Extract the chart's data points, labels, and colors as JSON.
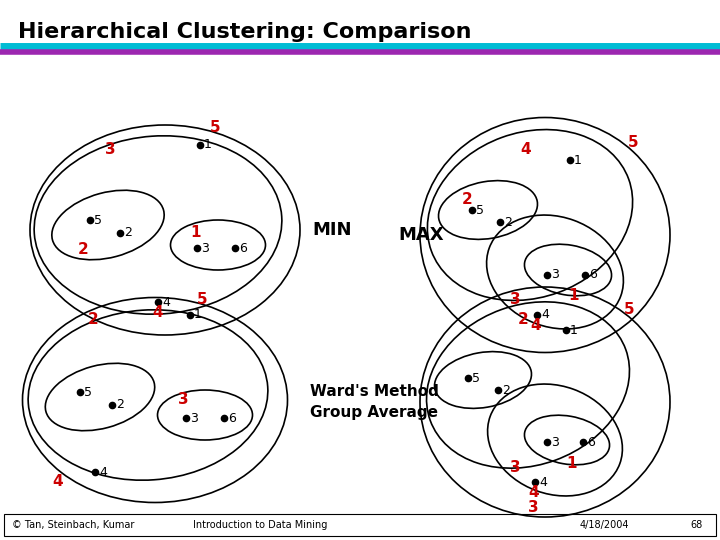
{
  "title": "Hierarchical Clustering: Comparison",
  "title_color": "#000000",
  "title_fontsize": 16,
  "line1_color": "#00bcd4",
  "line2_color": "#9c27b0",
  "footer_parts": [
    "© Tan, Steinbach, Kumar",
    "Introduction to Data Mining",
    "4/18/2004",
    "68"
  ],
  "min_label": "MIN",
  "max_label": "MAX",
  "ward_label": "Ward's Method",
  "group_label": "Group Average",
  "label_color": "#cc0000",
  "dot_color": "#000000"
}
